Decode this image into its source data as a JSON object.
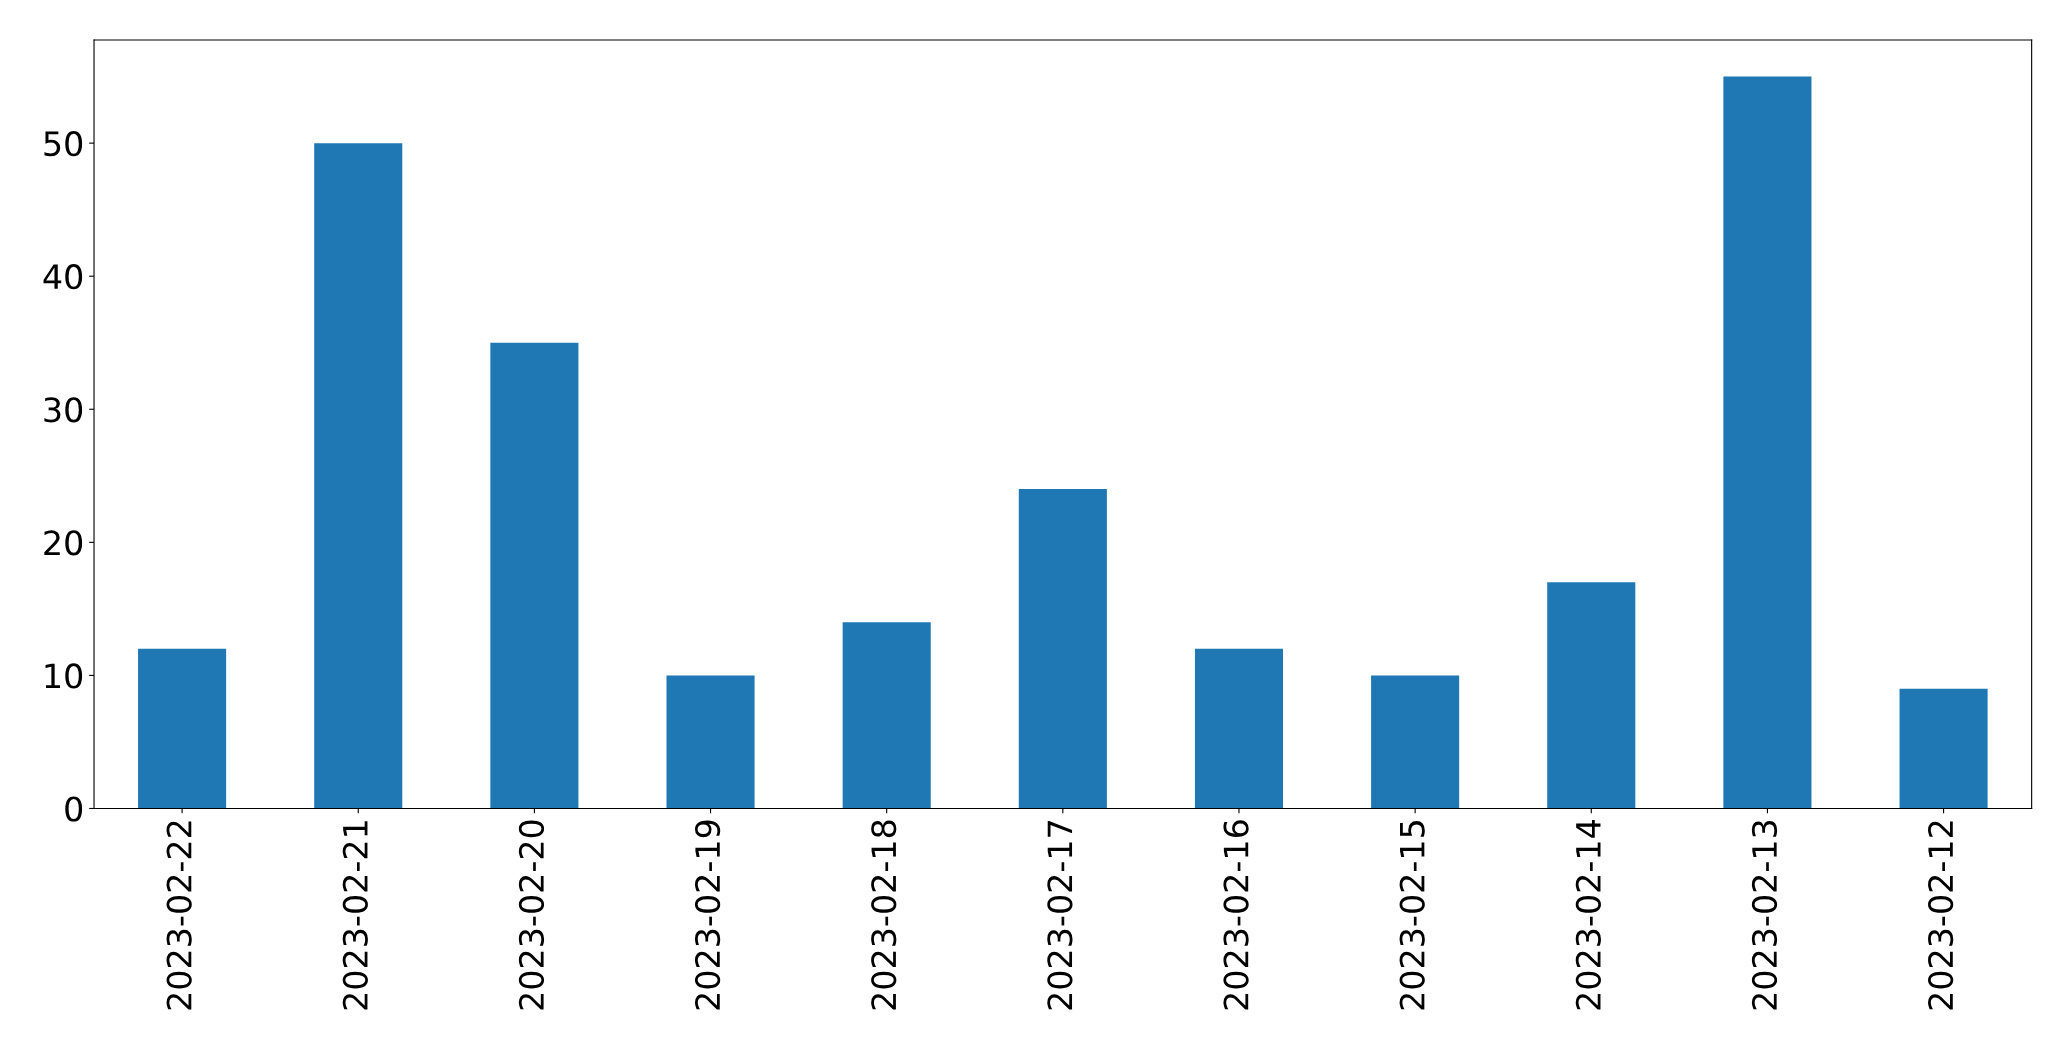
{
  "chart_data": {
    "type": "bar",
    "categories": [
      "2023-02-22",
      "2023-02-21",
      "2023-02-20",
      "2023-02-19",
      "2023-02-18",
      "2023-02-17",
      "2023-02-16",
      "2023-02-15",
      "2023-02-14",
      "2023-02-13",
      "2023-02-12"
    ],
    "values": [
      12,
      50,
      35,
      10,
      14,
      24,
      12,
      10,
      17,
      55,
      9
    ],
    "color": "#1f77b4",
    "ylim": [
      0,
      57.75
    ],
    "yticks": [
      0,
      10,
      20,
      30,
      40,
      50
    ],
    "grid": false,
    "legend": false
  }
}
